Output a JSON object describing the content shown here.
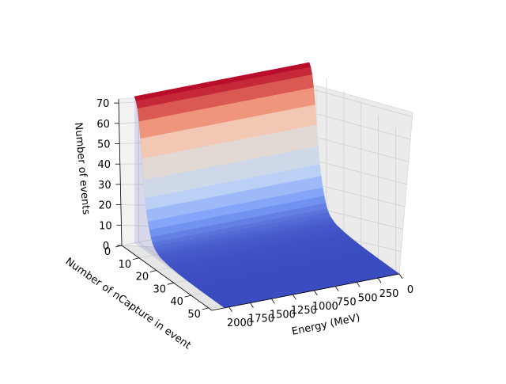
{
  "chart_data": {
    "type": "surface3d",
    "colormap": "coolwarm",
    "x": {
      "label": "Energy (MeV)",
      "ticks": [
        2000,
        1750,
        1500,
        1250,
        1000,
        750,
        500,
        250,
        0
      ],
      "tick_labels": [
        "2000",
        "1750",
        "1500",
        "1250",
        "1000",
        "750",
        "500",
        "250",
        "0"
      ]
    },
    "y": {
      "label": "Number of nCapture in event",
      "ticks": [
        0,
        10,
        20,
        30,
        40,
        50
      ],
      "tick_labels": [
        "0",
        "10",
        "20",
        "30",
        "40",
        "50"
      ]
    },
    "z": {
      "label": "Number of events",
      "ticks": [
        0,
        10,
        20,
        30,
        40,
        50,
        60,
        70
      ],
      "tick_labels": [
        "0",
        "10",
        "20",
        "30",
        "40",
        "50",
        "60",
        "70"
      ],
      "range": [
        0,
        72
      ]
    },
    "surface_profile_along_nCapture": {
      "nCapture": [
        0,
        1,
        2,
        3,
        4,
        5,
        6,
        8,
        10,
        12,
        15,
        20,
        25,
        30,
        40,
        52
      ],
      "events": [
        72,
        70,
        66,
        58,
        48,
        36,
        26,
        14,
        7,
        4,
        2,
        1,
        0.5,
        0.2,
        0,
        0
      ]
    },
    "grid": true,
    "legend": "none"
  }
}
